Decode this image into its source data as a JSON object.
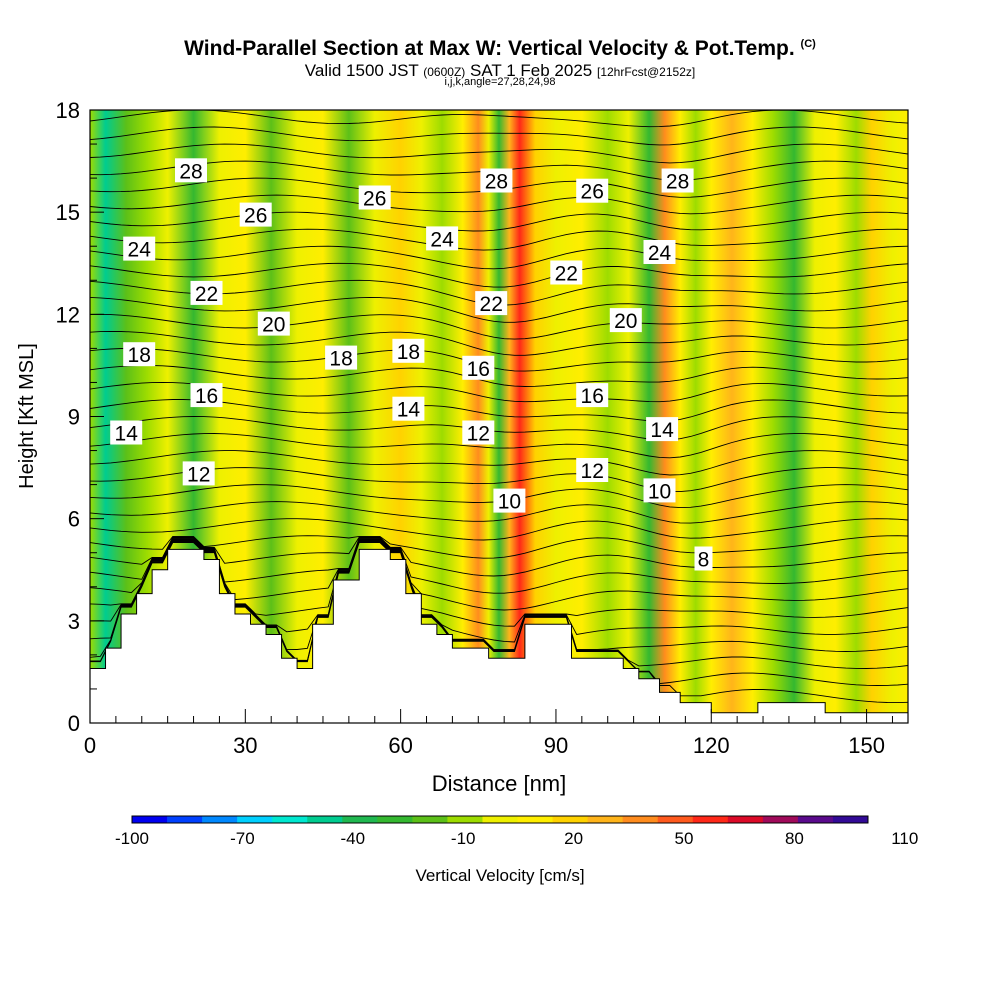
{
  "title": {
    "main": "Wind-Parallel Section at Max W: Vertical Velocity & Pot.Temp.",
    "tag": "(C)",
    "valid_prefix": "Valid 1500 JST",
    "valid_utc": "(0600Z)",
    "valid_date": "SAT 1 Feb 2025",
    "forecast": "[12hrFcst@2152z]",
    "indices": "i,j,k,angle=27,28,24,98"
  },
  "chart_data": {
    "type": "heatmap",
    "xlabel": "Distance [nm]",
    "ylabel": "Height [Kft MSL]",
    "xlim": [
      0,
      158
    ],
    "ylim": [
      0,
      18
    ],
    "x_ticks": [
      0,
      30,
      60,
      90,
      120,
      150
    ],
    "y_ticks": [
      0,
      3,
      6,
      9,
      12,
      15,
      18
    ],
    "colorbar": {
      "label": "Vertical Velocity [cm/s]",
      "tick_labels": [
        -100,
        -70,
        -40,
        -10,
        20,
        50,
        80,
        110
      ],
      "min": -100,
      "step": 10,
      "colors": [
        "#0000f0",
        "#0040ff",
        "#0088ff",
        "#00d0ff",
        "#00e8d0",
        "#00cc90",
        "#20b850",
        "#34b830",
        "#5cc018",
        "#9ddc00",
        "#eef000",
        "#ffee00",
        "#ffd200",
        "#ffb41a",
        "#ff8c1e",
        "#ff5a1e",
        "#ff2818",
        "#dc0a28",
        "#a00a5a",
        "#5a0a8c",
        "#320a96"
      ]
    },
    "velocity_columns": [
      {
        "x": 0,
        "w": -10
      },
      {
        "x": 3,
        "w": -45
      },
      {
        "x": 7,
        "w": -20
      },
      {
        "x": 11,
        "w": -5
      },
      {
        "x": 15,
        "w": 8
      },
      {
        "x": 20,
        "w": -25
      },
      {
        "x": 25,
        "w": 5
      },
      {
        "x": 30,
        "w": 12
      },
      {
        "x": 35,
        "w": -12
      },
      {
        "x": 40,
        "w": 5
      },
      {
        "x": 45,
        "w": 15
      },
      {
        "x": 50,
        "w": -18
      },
      {
        "x": 55,
        "w": 5
      },
      {
        "x": 60,
        "w": 22
      },
      {
        "x": 64,
        "w": 8
      },
      {
        "x": 68,
        "w": -8
      },
      {
        "x": 72,
        "w": 15
      },
      {
        "x": 75,
        "w": 40
      },
      {
        "x": 77,
        "w": 5
      },
      {
        "x": 79,
        "w": -30
      },
      {
        "x": 81,
        "w": 35
      },
      {
        "x": 83,
        "w": 65
      },
      {
        "x": 86,
        "w": 25
      },
      {
        "x": 90,
        "w": 5
      },
      {
        "x": 95,
        "w": 10
      },
      {
        "x": 100,
        "w": -5
      },
      {
        "x": 104,
        "w": 5
      },
      {
        "x": 108,
        "w": -25
      },
      {
        "x": 111,
        "w": 40
      },
      {
        "x": 114,
        "w": 10
      },
      {
        "x": 117,
        "w": -10
      },
      {
        "x": 120,
        "w": 15
      },
      {
        "x": 124,
        "w": 35
      },
      {
        "x": 128,
        "w": 15
      },
      {
        "x": 132,
        "w": -5
      },
      {
        "x": 136,
        "w": -30
      },
      {
        "x": 140,
        "w": 5
      },
      {
        "x": 144,
        "w": 15
      },
      {
        "x": 148,
        "w": -10
      },
      {
        "x": 151,
        "w": 25
      },
      {
        "x": 155,
        "w": 5
      },
      {
        "x": 158,
        "w": 10
      }
    ],
    "terrain": [
      [
        0,
        1.6
      ],
      [
        3,
        1.6
      ],
      [
        3,
        2.2
      ],
      [
        6,
        2.2
      ],
      [
        6,
        3.2
      ],
      [
        9,
        3.2
      ],
      [
        9,
        3.8
      ],
      [
        12,
        3.8
      ],
      [
        12,
        4.5
      ],
      [
        15,
        4.5
      ],
      [
        15,
        5.1
      ],
      [
        22,
        5.1
      ],
      [
        22,
        4.8
      ],
      [
        25,
        4.8
      ],
      [
        25,
        3.8
      ],
      [
        28,
        3.8
      ],
      [
        28,
        3.2
      ],
      [
        31,
        3.2
      ],
      [
        31,
        2.9
      ],
      [
        34,
        2.9
      ],
      [
        34,
        2.6
      ],
      [
        37,
        2.6
      ],
      [
        37,
        1.9
      ],
      [
        40,
        1.9
      ],
      [
        40,
        1.6
      ],
      [
        43,
        1.6
      ],
      [
        43,
        2.9
      ],
      [
        47,
        2.9
      ],
      [
        47,
        4.2
      ],
      [
        52,
        4.2
      ],
      [
        52,
        5.1
      ],
      [
        58,
        5.1
      ],
      [
        58,
        4.8
      ],
      [
        61,
        4.8
      ],
      [
        61,
        3.8
      ],
      [
        64,
        3.8
      ],
      [
        64,
        2.9
      ],
      [
        67,
        2.9
      ],
      [
        67,
        2.6
      ],
      [
        70,
        2.6
      ],
      [
        70,
        2.2
      ],
      [
        77,
        2.2
      ],
      [
        77,
        1.9
      ],
      [
        84,
        1.9
      ],
      [
        84,
        2.9
      ],
      [
        93,
        2.9
      ],
      [
        93,
        1.9
      ],
      [
        103,
        1.9
      ],
      [
        103,
        1.6
      ],
      [
        106,
        1.6
      ],
      [
        106,
        1.3
      ],
      [
        110,
        1.3
      ],
      [
        110,
        0.9
      ],
      [
        114,
        0.9
      ],
      [
        114,
        0.6
      ],
      [
        120,
        0.6
      ],
      [
        120,
        0.3
      ],
      [
        129,
        0.3
      ],
      [
        129,
        0.6
      ],
      [
        142,
        0.6
      ],
      [
        142,
        0.3
      ],
      [
        158,
        0.3
      ]
    ],
    "theta_contour_labels": [
      {
        "text": "28",
        "x": 19.5,
        "y": 16.2
      },
      {
        "text": "26",
        "x": 32,
        "y": 14.9
      },
      {
        "text": "24",
        "x": 9.5,
        "y": 13.9
      },
      {
        "text": "22",
        "x": 22.5,
        "y": 12.6
      },
      {
        "text": "20",
        "x": 35.5,
        "y": 11.7
      },
      {
        "text": "18",
        "x": 9.5,
        "y": 10.8
      },
      {
        "text": "16",
        "x": 22.5,
        "y": 9.6
      },
      {
        "text": "14",
        "x": 7,
        "y": 8.5
      },
      {
        "text": "12",
        "x": 21,
        "y": 7.3
      },
      {
        "text": "26",
        "x": 55,
        "y": 15.4
      },
      {
        "text": "24",
        "x": 68,
        "y": 14.2
      },
      {
        "text": "18",
        "x": 48.5,
        "y": 10.7
      },
      {
        "text": "18",
        "x": 61.5,
        "y": 10.9
      },
      {
        "text": "14",
        "x": 61.5,
        "y": 9.2
      },
      {
        "text": "28",
        "x": 78.5,
        "y": 15.9
      },
      {
        "text": "22",
        "x": 77.5,
        "y": 12.3
      },
      {
        "text": "16",
        "x": 75,
        "y": 10.4
      },
      {
        "text": "12",
        "x": 75,
        "y": 8.5
      },
      {
        "text": "10",
        "x": 81,
        "y": 6.5
      },
      {
        "text": "26",
        "x": 97,
        "y": 15.6
      },
      {
        "text": "22",
        "x": 92,
        "y": 13.2
      },
      {
        "text": "20",
        "x": 103.5,
        "y": 11.8
      },
      {
        "text": "16",
        "x": 97,
        "y": 9.6
      },
      {
        "text": "12",
        "x": 97,
        "y": 7.4
      },
      {
        "text": "28",
        "x": 113.5,
        "y": 15.9
      },
      {
        "text": "24",
        "x": 110,
        "y": 13.8
      },
      {
        "text": "14",
        "x": 110.5,
        "y": 8.6
      },
      {
        "text": "10",
        "x": 110,
        "y": 6.8
      },
      {
        "text": "8",
        "x": 118.5,
        "y": 4.8
      }
    ]
  }
}
